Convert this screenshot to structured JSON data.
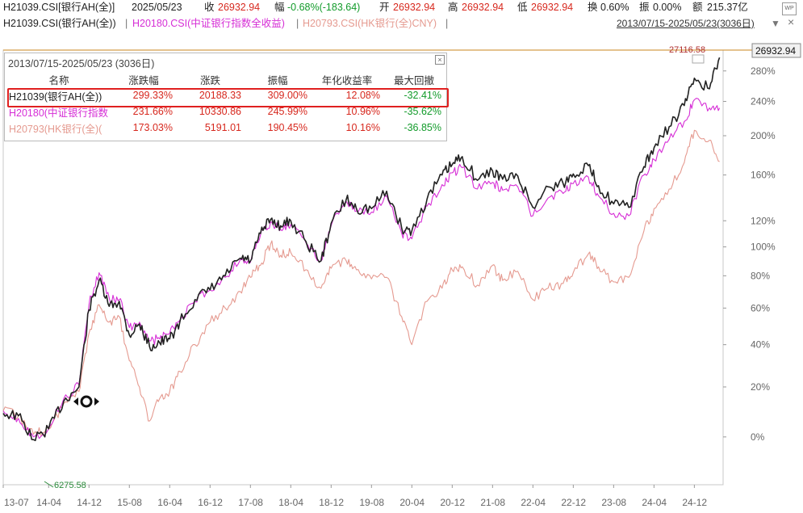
{
  "header": {
    "code": "H21039.CSI[银行AH(全)]",
    "date": "2025/05/23",
    "close_label": "收",
    "close": "26932.94",
    "change_label": "幅",
    "change": "-0.68%(-183.64)",
    "open_label": "开",
    "open": "26932.94",
    "high_label": "高",
    "high": "26932.94",
    "low_label": "低",
    "low": "26932.94",
    "turnover_label": "换",
    "turnover": "0.60%",
    "amplitude_label": "振",
    "amplitude": "0.00%",
    "amount_label": "额",
    "amount": "215.37亿",
    "logo_text": "WP"
  },
  "legend_line": {
    "s1": "H21039.CSI(银行AH(全))",
    "sep": "|",
    "s2": "H20180.CSI(中证银行指数全收益)",
    "s3": "H20793.CSI(HK银行(全)CNY)",
    "range": "2013/07/15-2025/05/23(3036日)",
    "dropdown_icon": "▼",
    "close_icon": "×"
  },
  "colors": {
    "s1": "#222222",
    "s2": "#d62ed6",
    "s3": "#e59a90",
    "up": "#d7281e",
    "down": "#129b2a",
    "highlight": "#e02020"
  },
  "stats_panel": {
    "title": "2013/07/15-2025/05/23 (3036日)",
    "headers": [
      "名称",
      "涨跌幅",
      "涨跌",
      "振幅",
      "年化收益率",
      "最大回撤"
    ],
    "rows": [
      [
        "H21039(银行AH(全))",
        "299.33%",
        "20188.33",
        "309.00%",
        "12.08%",
        "-32.41%"
      ],
      [
        "H20180(中证银行指数",
        "231.66%",
        "10330.86",
        "245.99%",
        "10.96%",
        "-35.62%"
      ],
      [
        "H20793(HK银行(全)(",
        "173.03%",
        "5191.01",
        "190.45%",
        "10.16%",
        "-36.85%"
      ]
    ]
  },
  "chart_data": {
    "type": "line",
    "title": "",
    "y_scale": "log",
    "y_ticks": [
      "0%",
      "20%",
      "40%",
      "60%",
      "80%",
      "100%",
      "120%",
      "160%",
      "200%",
      "240%",
      "280%"
    ],
    "x_ticks": [
      "13-07",
      "14-04",
      "14-12",
      "15-08",
      "16-04",
      "16-12",
      "17-08",
      "18-04",
      "18-12",
      "19-08",
      "20-04",
      "20-12",
      "21-08",
      "22-04",
      "22-12",
      "23-08",
      "24-04",
      "24-12"
    ],
    "last_value_label": "26932.94",
    "max_label": "27116.58",
    "min_label": "6275.58",
    "series": [
      {
        "name": "H21039.CSI(银行AH(全))",
        "x": [
          "13-07",
          "13-10",
          "14-01",
          "14-04",
          "14-07",
          "14-10",
          "14-12",
          "15-02",
          "15-04",
          "15-06",
          "15-08",
          "15-10",
          "15-12",
          "16-02",
          "16-04",
          "16-06",
          "16-09",
          "16-12",
          "17-03",
          "17-06",
          "17-08",
          "17-10",
          "17-12",
          "18-02",
          "18-04",
          "18-07",
          "18-10",
          "18-12",
          "19-03",
          "19-05",
          "19-08",
          "19-11",
          "20-02",
          "20-04",
          "20-07",
          "20-10",
          "20-12",
          "21-02",
          "21-05",
          "21-08",
          "21-10",
          "22-01",
          "22-04",
          "22-07",
          "22-10",
          "22-12",
          "23-03",
          "23-05",
          "23-08",
          "23-11",
          "24-02",
          "24-04",
          "24-07",
          "24-10",
          "24-12",
          "25-03",
          "25-05"
        ],
        "values": [
          9,
          8,
          -1,
          3,
          14,
          20,
          59,
          77,
          61,
          64,
          45,
          51,
          39,
          41,
          43,
          52,
          65,
          71,
          80,
          92,
          90,
          110,
          121,
          116,
          120,
          104,
          90,
          118,
          138,
          130,
          130,
          145,
          114,
          112,
          138,
          160,
          170,
          178,
          155,
          164,
          156,
          159,
          131,
          149,
          152,
          161,
          169,
          150,
          134,
          131,
          168,
          187,
          210,
          235,
          270,
          256,
          299
        ]
      },
      {
        "name": "H20180.CSI(中证银行指数全收益)",
        "x": [
          "13-07",
          "13-10",
          "14-01",
          "14-04",
          "14-07",
          "14-10",
          "14-12",
          "15-02",
          "15-04",
          "15-06",
          "15-08",
          "15-10",
          "15-12",
          "16-02",
          "16-04",
          "16-06",
          "16-09",
          "16-12",
          "17-03",
          "17-06",
          "17-08",
          "17-10",
          "17-12",
          "18-02",
          "18-04",
          "18-07",
          "18-10",
          "18-12",
          "19-03",
          "19-05",
          "19-08",
          "19-11",
          "20-02",
          "20-04",
          "20-07",
          "20-10",
          "20-12",
          "21-02",
          "21-05",
          "21-08",
          "21-10",
          "22-01",
          "22-04",
          "22-07",
          "22-10",
          "22-12",
          "23-03",
          "23-05",
          "23-08",
          "23-11",
          "24-02",
          "24-04",
          "24-07",
          "24-10",
          "24-12",
          "25-03",
          "25-05"
        ],
        "values": [
          10,
          7,
          0,
          3,
          15,
          21,
          62,
          82,
          66,
          65,
          49,
          52,
          42,
          43,
          46,
          53,
          64,
          71,
          79,
          91,
          89,
          109,
          119,
          113,
          117,
          103,
          90,
          116,
          136,
          128,
          127,
          141,
          110,
          106,
          132,
          151,
          162,
          167,
          147,
          153,
          146,
          149,
          124,
          139,
          143,
          152,
          158,
          141,
          126,
          124,
          160,
          175,
          196,
          216,
          242,
          232,
          232
        ]
      },
      {
        "name": "H20793.CSI(HK银行(全)CNY)",
        "x": [
          "13-07",
          "13-10",
          "14-01",
          "14-04",
          "14-07",
          "14-10",
          "14-12",
          "15-02",
          "15-04",
          "15-06",
          "15-08",
          "15-10",
          "15-12",
          "16-02",
          "16-04",
          "16-06",
          "16-09",
          "16-12",
          "17-03",
          "17-06",
          "17-08",
          "17-10",
          "17-12",
          "18-02",
          "18-04",
          "18-07",
          "18-10",
          "18-12",
          "19-03",
          "19-05",
          "19-08",
          "19-11",
          "20-02",
          "20-04",
          "20-07",
          "20-10",
          "20-12",
          "21-02",
          "21-05",
          "21-08",
          "21-10",
          "22-01",
          "22-04",
          "22-07",
          "22-10",
          "22-12",
          "23-03",
          "23-05",
          "23-08",
          "23-11",
          "24-02",
          "24-04",
          "24-07",
          "24-10",
          "24-12",
          "25-03",
          "25-05"
        ],
        "values": [
          10,
          8,
          1,
          3,
          13,
          18,
          46,
          62,
          52,
          55,
          32,
          20,
          6,
          15,
          18,
          27,
          40,
          52,
          60,
          70,
          79,
          87,
          102,
          94,
          96,
          84,
          72,
          85,
          90,
          84,
          78,
          79,
          55,
          40,
          64,
          72,
          84,
          86,
          74,
          87,
          77,
          83,
          65,
          72,
          75,
          82,
          95,
          86,
          76,
          79,
          112,
          130,
          147,
          172,
          206,
          195,
          173
        ]
      }
    ]
  }
}
